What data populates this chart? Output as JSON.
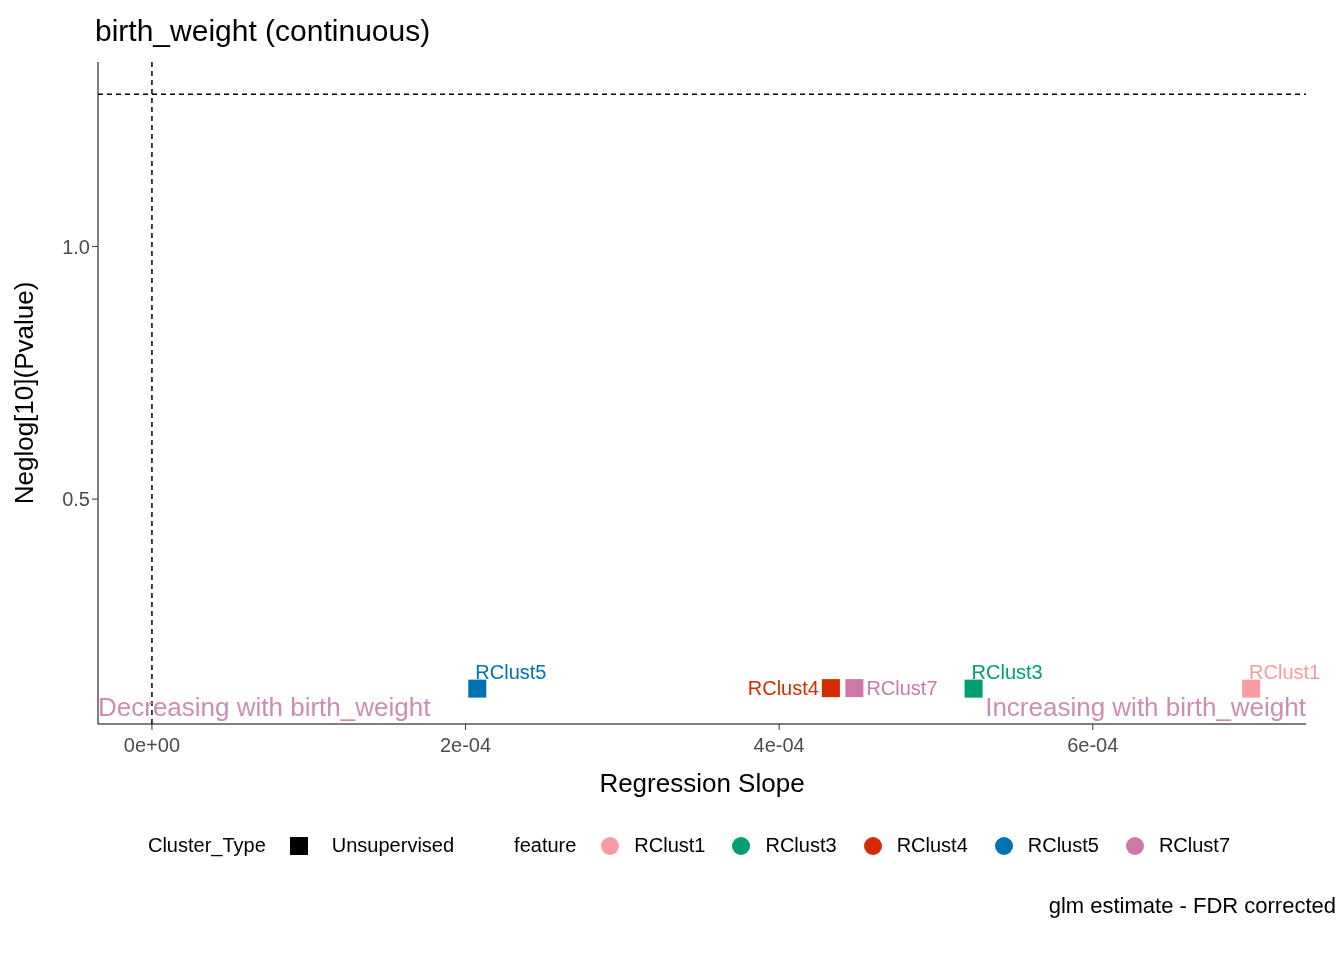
{
  "chart_data": {
    "type": "scatter",
    "title": "birth_weight (continuous)",
    "xlabel": "Regression Slope",
    "ylabel": "Neglog[10](Pvalue)",
    "legend_title": "feature",
    "marker": "square",
    "legend": "bottom",
    "grid": false,
    "xlim": [
      -3.44e-05,
      0.000736
    ],
    "ylim": [
      0.055,
      1.365
    ],
    "xticks": [
      {
        "value": 0,
        "label": "0e+00"
      },
      {
        "value": 0.0002,
        "label": "2e-04"
      },
      {
        "value": 0.0004,
        "label": "4e-04"
      },
      {
        "value": 0.0006,
        "label": "6e-04"
      }
    ],
    "yticks": [
      {
        "value": 0.5,
        "label": "0.5"
      },
      {
        "value": 1.0,
        "label": "1.0"
      }
    ],
    "series": [
      {
        "name": "RClust1",
        "color": "#f99ca2",
        "x": [
          0.000701
        ],
        "values": [
          0.125
        ]
      },
      {
        "name": "RClust3",
        "color": "#009e73",
        "x": [
          0.000524
        ],
        "values": [
          0.125
        ]
      },
      {
        "name": "RClust4",
        "color": "#d52b00",
        "x": [
          0.000433
        ],
        "values": [
          0.126
        ]
      },
      {
        "name": "RClust5",
        "color": "#0072b2",
        "x": [
          0.0002075
        ],
        "values": [
          0.125
        ]
      },
      {
        "name": "RClust7",
        "color": "#cc79a7",
        "x": [
          0.000448
        ],
        "values": [
          0.126
        ]
      }
    ],
    "ref_lines": [
      {
        "axis": "x",
        "value": 0,
        "line_style": "dashed",
        "color": "#000000"
      },
      {
        "axis": "y",
        "value": 1.301,
        "line_style": "dashed",
        "color": "#000000"
      }
    ],
    "annotations": [
      "Decreasing with birth_weight",
      "Increasing with birth_weight",
      "glm estimate - FDR corrected",
      "Cluster_Type",
      "Unsupervised"
    ]
  }
}
